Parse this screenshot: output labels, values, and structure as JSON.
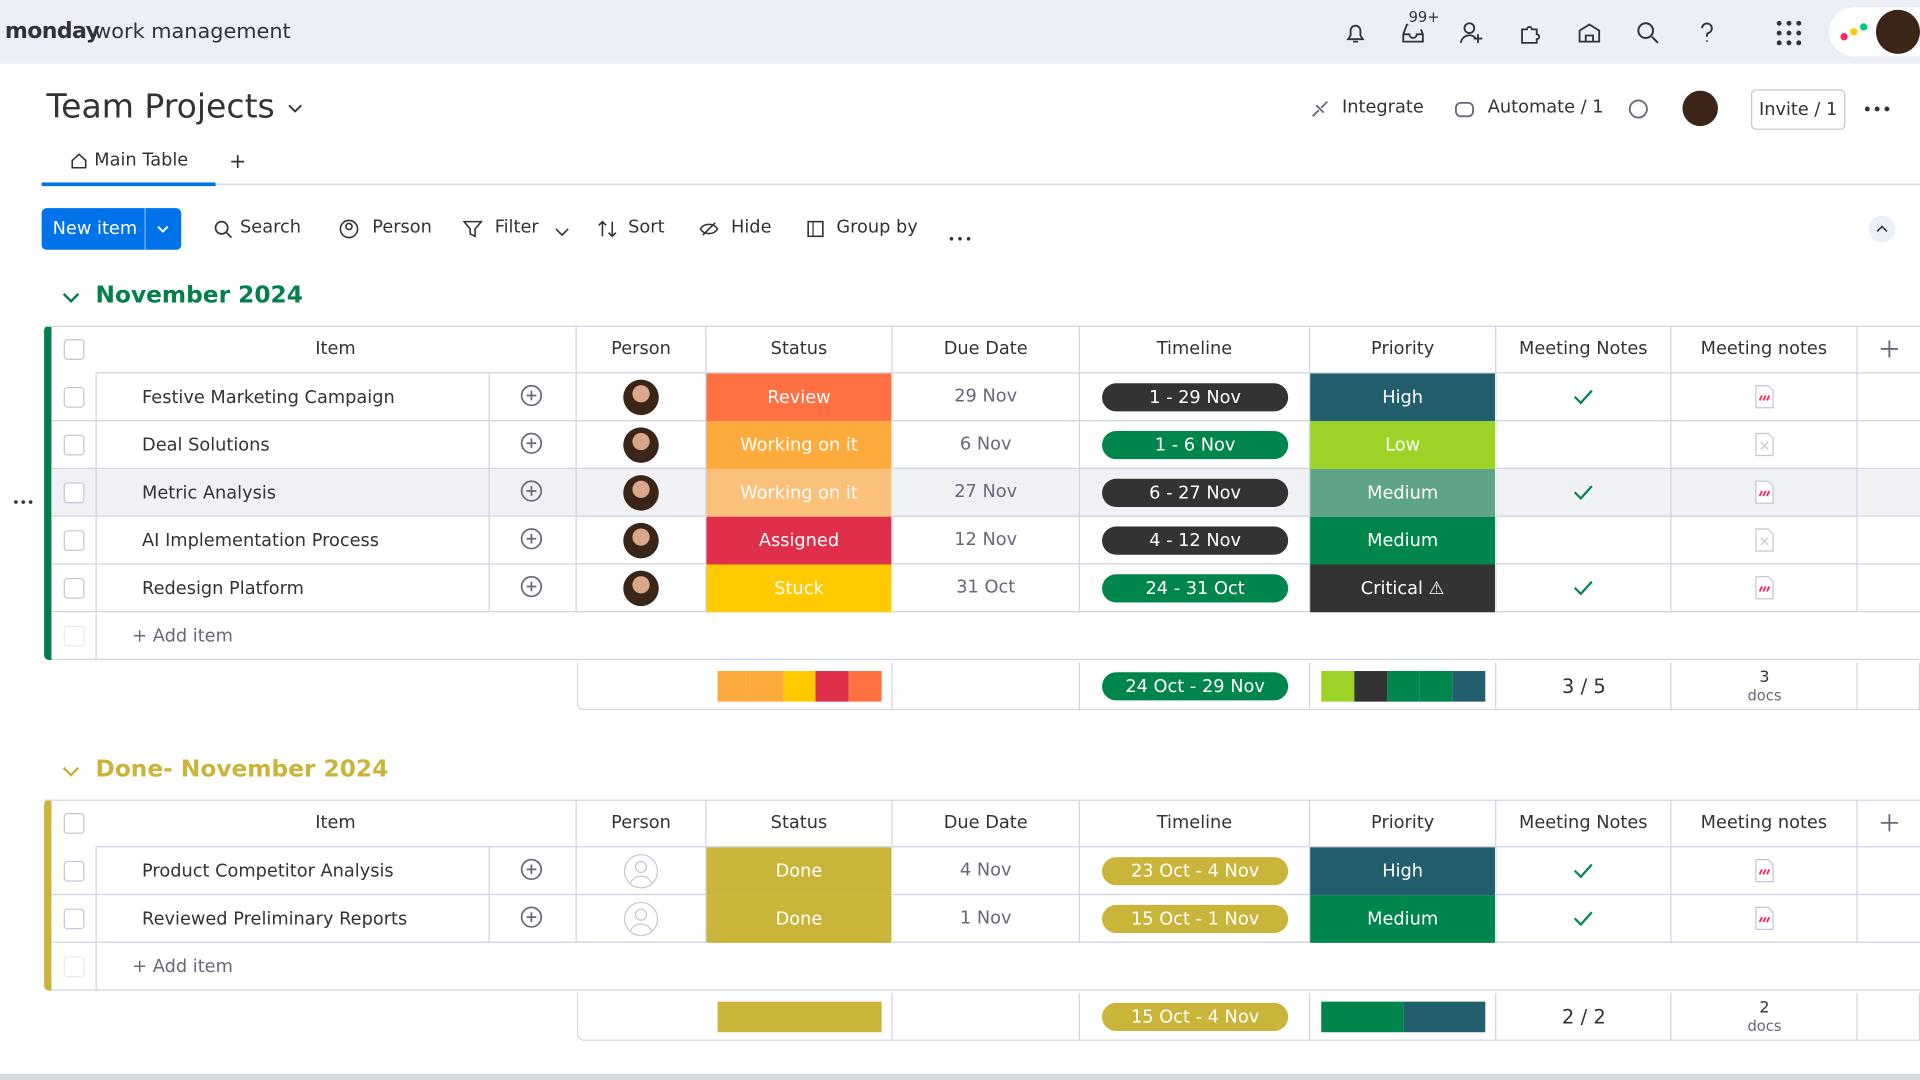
{
  "header": {
    "brand": "monday",
    "product": "work management",
    "badge": "99+"
  },
  "board": {
    "title": "Team Projects",
    "actions": [
      "Integrate",
      "Automate / 1",
      "Invite / 1"
    ]
  },
  "tabs": [
    "Main Table",
    "+"
  ],
  "toolbar": {
    "new_item": "New item",
    "buttons": [
      "Search",
      "Person",
      "Filter",
      "Sort",
      "Hide",
      "Group by"
    ]
  },
  "columns": [
    "Item",
    "Person",
    "Status",
    "Due Date",
    "Timeline",
    "Priority",
    "Meeting Notes",
    "Meeting notes"
  ],
  "groups": [
    {
      "title": "November 2024",
      "color": "#037f4c",
      "add_item": "+ Add item",
      "rows": [
        {
          "item": "Festive Marketing Campaign",
          "person": true,
          "status": "Review",
          "status_color": "#ff7043",
          "due": "29 Nov",
          "timeline": "1 - 29 Nov",
          "timeline_color": "#333333",
          "priority": "High",
          "priority_color": "#225e6b",
          "notes": true,
          "doc": true
        },
        {
          "item": "Deal Solutions",
          "person": true,
          "status": "Working on it",
          "status_color": "#fdab3d",
          "due": "6 Nov",
          "timeline": "1 - 6 Nov",
          "timeline_color": "#00854d",
          "priority": "Low",
          "priority_color": "#9cd326",
          "notes": false,
          "doc": false
        },
        {
          "item": "Metric Analysis",
          "person": true,
          "status": "Working on it",
          "status_color": "#fbc07a",
          "due": "27 Nov",
          "timeline": "6 - 27 Nov",
          "timeline_color": "#333333",
          "priority": "Medium",
          "priority_color": "#5fa487",
          "notes": true,
          "doc": true
        },
        {
          "item": "AI Implementation Process",
          "person": true,
          "status": "Assigned",
          "status_color": "#df2f4a",
          "due": "12 Nov",
          "timeline": "4 - 12 Nov",
          "timeline_color": "#333333",
          "priority": "Medium",
          "priority_color": "#00854d",
          "notes": false,
          "doc": false
        },
        {
          "item": "Redesign Platform",
          "person": true,
          "status": "Stuck",
          "status_color": "#ffcb00",
          "due": "31 Oct",
          "timeline": "24 - 31 Oct",
          "timeline_color": "#00854d",
          "priority": "Critical ⚠",
          "priority_color": "#333333",
          "notes": true,
          "doc": true
        }
      ],
      "summary": {
        "status_colors": [
          "#fdab3d",
          "#fdab3d",
          "#ffcb00",
          "#df2f4a",
          "#ff7043"
        ],
        "timeline": "24 Oct - 29 Nov",
        "timeline_color": "#00854d",
        "priority_colors": [
          "#9cd326",
          "#333333",
          "#00854d",
          "#00854d",
          "#225e6b"
        ],
        "notes": "3 / 5",
        "docs_count": "3",
        "docs_label": "docs"
      }
    },
    {
      "title": "Done- November 2024",
      "color": "#c9b53a",
      "add_item": "+ Add item",
      "rows": [
        {
          "item": "Product Competitor Analysis",
          "person": false,
          "status": "Done",
          "status_color": "#c9b53a",
          "due": "4 Nov",
          "timeline": "23 Oct - 4 Nov",
          "timeline_color": "#c9b53a",
          "priority": "High",
          "priority_color": "#225e6b",
          "notes": true,
          "doc": true
        },
        {
          "item": "Reviewed Preliminary Reports",
          "person": false,
          "status": "Done",
          "status_color": "#c9b53a",
          "due": "1 Nov",
          "timeline": "15 Oct - 1 Nov",
          "timeline_color": "#c9b53a",
          "priority": "Medium",
          "priority_color": "#00854d",
          "notes": true,
          "doc": true
        }
      ],
      "summary": {
        "status_colors": [
          "#c9b53a"
        ],
        "timeline": "15 Oct - 4 Nov",
        "timeline_color": "#c9b53a",
        "priority_colors": [
          "#00854d",
          "#225e6b"
        ],
        "notes": "2 / 2",
        "docs_count": "2",
        "docs_label": "docs"
      }
    }
  ]
}
